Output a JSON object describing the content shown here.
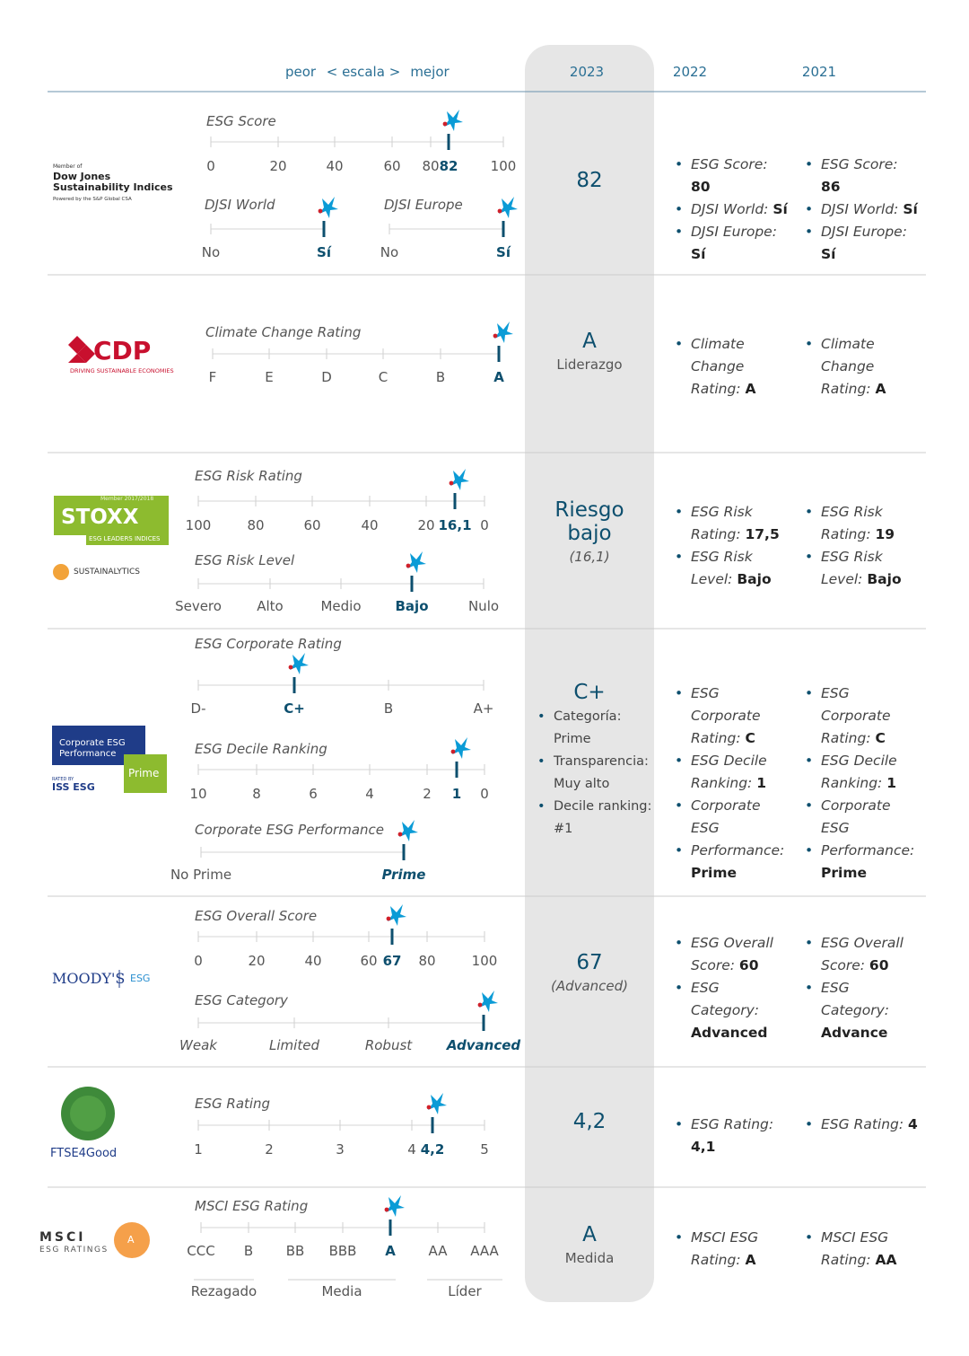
{
  "header": {
    "scale": [
      "peor",
      "< escala >",
      "mejor"
    ],
    "years": [
      "2023",
      "2022",
      "2021"
    ]
  },
  "rows": [
    {
      "logo": [
        "Member of",
        "Dow Jones",
        "Sustainability Indices",
        "Powered by the S&P Global CSA"
      ],
      "scales": [
        {
          "title": "ESG Score",
          "ticks": [
            "0",
            "20",
            "40",
            "60",
            "80",
            "82",
            "100"
          ]
        },
        {
          "title": "DJSI World",
          "ticks": [
            "No",
            "Sí"
          ]
        },
        {
          "title": "DJSI Europe",
          "ticks": [
            "No",
            "Sí"
          ]
        }
      ],
      "y2023": {
        "main": "82"
      },
      "y2022": [
        {
          "label": "ESG Score:",
          "value": "80"
        },
        {
          "label": "DJSI World:",
          "value": "Sí"
        },
        {
          "label": "DJSI Europe:",
          "value": "Sí"
        }
      ],
      "y2021": [
        {
          "label": "ESG Score:",
          "value": "86"
        },
        {
          "label": "DJSI World:",
          "value": "Sí"
        },
        {
          "label": "DJSI Europe:",
          "value": "Sí"
        }
      ]
    },
    {
      "logo": [
        "CDP",
        "DRIVING SUSTAINABLE ECONOMIES"
      ],
      "scales": [
        {
          "title": "Climate Change Rating",
          "ticks": [
            "F",
            "E",
            "D",
            "C",
            "B",
            "A"
          ]
        }
      ],
      "y2023": {
        "main": "A",
        "sub": "Liderazgo"
      },
      "y2022": [
        {
          "label": "Climate Change Rating:",
          "value": "A"
        }
      ],
      "y2021": [
        {
          "label": "Climate Change Rating:",
          "value": "A"
        }
      ]
    },
    {
      "logo": [
        "Member 2017/2018",
        "STOXX",
        "ESG LEADERS INDICES",
        "SUSTAINALYTICS"
      ],
      "scales": [
        {
          "title": "ESG Risk Rating",
          "ticks": [
            "100",
            "80",
            "60",
            "40",
            "20",
            "16,1",
            "0"
          ]
        },
        {
          "title": "ESG Risk Level",
          "ticks": [
            "Severo",
            "Alto",
            "Medio",
            "Bajo",
            "Nulo"
          ]
        }
      ],
      "y2023": {
        "main": "Riesgo bajo",
        "sub": "(16,1)"
      },
      "y2022": [
        {
          "label": "ESG Risk Rating:",
          "value": "17,5"
        },
        {
          "label": "ESG Risk Level:",
          "value": "Bajo"
        }
      ],
      "y2021": [
        {
          "label": "ESG Risk Rating:",
          "value": "19"
        },
        {
          "label": "ESG Risk Level:",
          "value": "Bajo"
        }
      ]
    },
    {
      "logo": [
        "Corporate ESG Performance",
        "Prime",
        "RATED BY",
        "ISS ESG"
      ],
      "scales": [
        {
          "title": "ESG Corporate Rating",
          "ticks": [
            "D-",
            "C+",
            "B",
            "A+"
          ]
        },
        {
          "title": "ESG Decile Ranking",
          "ticks": [
            "10",
            "8",
            "6",
            "4",
            "2",
            "1",
            "0"
          ]
        },
        {
          "title": "Corporate ESG Performance",
          "ticks": [
            "No Prime",
            "Prime"
          ]
        }
      ],
      "y2023": {
        "main": "C+",
        "bullets": [
          "Categoría: Prime",
          "Transparencia: Muy alto",
          "Decile ranking: #1"
        ]
      },
      "y2022": [
        {
          "label": "ESG Corporate Rating:",
          "value": "C"
        },
        {
          "label": "ESG Decile Ranking:",
          "value": "1"
        },
        {
          "label": "Corporate ESG"
        },
        {
          "label": "Performance:",
          "value": "Prime"
        }
      ],
      "y2021": [
        {
          "label": "ESG Corporate Rating:",
          "value": "C"
        },
        {
          "label": "ESG Decile Ranking:",
          "value": "1"
        },
        {
          "label": "Corporate ESG"
        },
        {
          "label": "Performance:",
          "value": "Prime"
        }
      ]
    },
    {
      "logo": [
        "MOODY'S",
        "ESG"
      ],
      "scales": [
        {
          "title": "ESG Overall Score",
          "ticks": [
            "0",
            "20",
            "40",
            "60",
            "67",
            "80",
            "100"
          ]
        },
        {
          "title": "ESG Category",
          "ticks": [
            "Weak",
            "Limited",
            "Robust",
            "Advanced"
          ]
        }
      ],
      "y2023": {
        "main": "67",
        "sub": "(Advanced)"
      },
      "y2022": [
        {
          "label": "ESG Overall Score:",
          "value": "60"
        },
        {
          "label": "ESG Category:",
          "value": "Advanced"
        }
      ],
      "y2021": [
        {
          "label": "ESG Overall Score:",
          "value": "60"
        },
        {
          "label": "ESG Category:",
          "value": "Advance"
        }
      ]
    },
    {
      "logo": [
        "FTSE4Good"
      ],
      "scales": [
        {
          "title": "ESG Rating",
          "ticks": [
            "1",
            "2",
            "3",
            "4",
            "4,2",
            "5"
          ]
        }
      ],
      "y2023": {
        "main": "4,2"
      },
      "y2022": [
        {
          "label": "ESG Rating:",
          "value": "4,1"
        }
      ],
      "y2021": [
        {
          "label": "ESG Rating:",
          "value": "4"
        }
      ]
    },
    {
      "logo": [
        "MSCI",
        "ESG RATINGS",
        "A"
      ],
      "scales": [
        {
          "title": "MSCI ESG Rating",
          "ticks": [
            "CCC",
            "B",
            "BB",
            "BBB",
            "A",
            "AA",
            "AAA"
          ],
          "groups": [
            "Rezagado",
            "Media",
            "Líder"
          ]
        }
      ],
      "y2023": {
        "main": "A",
        "sub": "Medida"
      },
      "y2022": [
        {
          "label": "MSCI ESG Rating:",
          "value": "A"
        }
      ],
      "y2021": [
        {
          "label": "MSCI ESG Rating:",
          "value": "AA"
        }
      ]
    }
  ]
}
